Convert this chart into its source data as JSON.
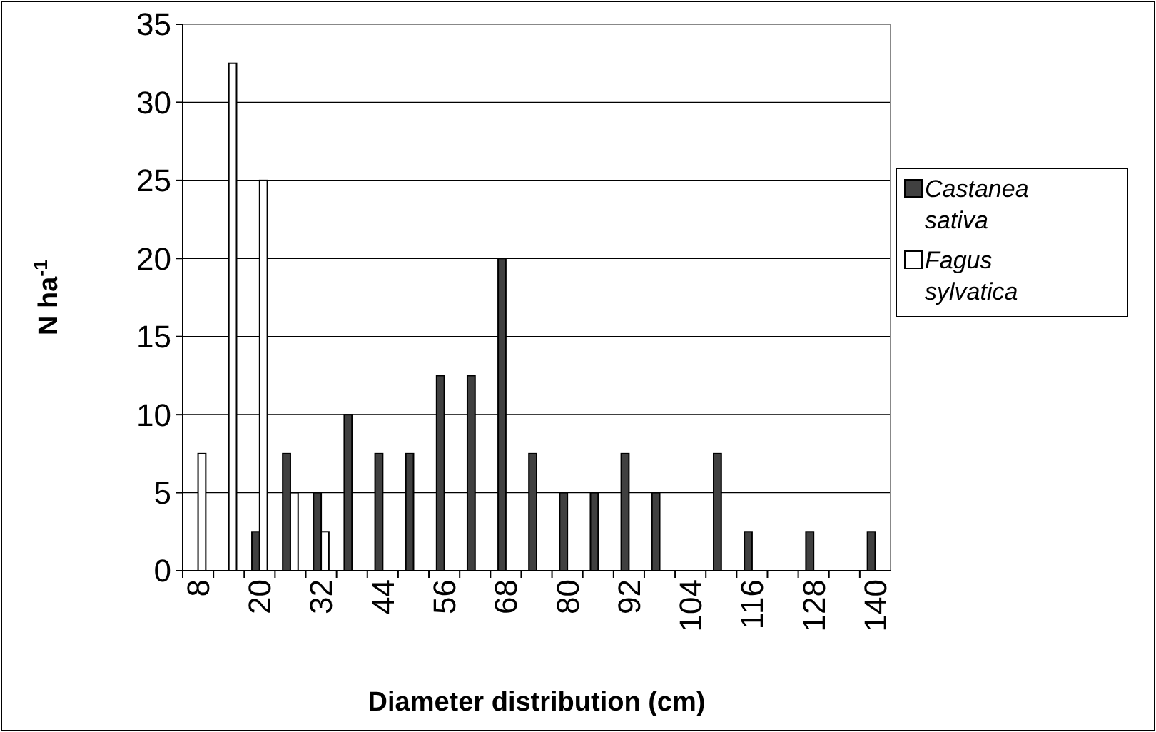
{
  "chart_data": {
    "type": "bar",
    "xlabel": "Diameter distribution (cm)",
    "ylabel": "N ha$^{-1}$",
    "categories": [
      "8",
      null,
      "20",
      null,
      "32",
      null,
      "44",
      null,
      "56",
      null,
      "68",
      null,
      "80",
      null,
      "92",
      null,
      "104",
      null,
      "116",
      null,
      "128",
      null,
      "140"
    ],
    "series": [
      {
        "name": "Castanea sativa",
        "color": "#404040",
        "values": [
          0,
          0,
          2.5,
          7.5,
          5,
          10,
          7.5,
          7.5,
          12.5,
          12.5,
          20,
          7.5,
          5,
          5,
          7.5,
          5,
          0,
          7.5,
          2.5,
          0,
          2.5,
          0,
          2.5
        ]
      },
      {
        "name": "Fagus sylvatica",
        "color": "#ffffff",
        "values": [
          7.5,
          32.5,
          25,
          5,
          2.5,
          0,
          0,
          0,
          0,
          0,
          0,
          0,
          0,
          0,
          0,
          0,
          0,
          0,
          0,
          0,
          0,
          0,
          0
        ]
      }
    ],
    "ylim": [
      0,
      35
    ],
    "yticks": [
      0,
      5,
      10,
      15,
      20,
      25,
      30,
      35
    ],
    "grid": "y",
    "legend": "right"
  }
}
